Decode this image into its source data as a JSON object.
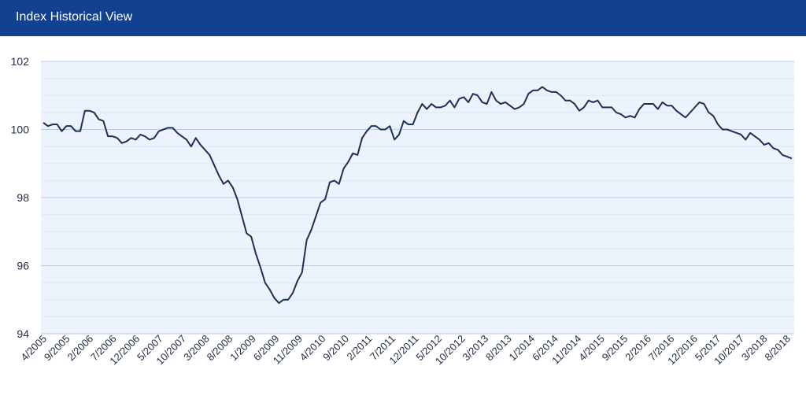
{
  "header": {
    "title": "Index Historical View"
  },
  "colors": {
    "header_bg": "#12418f",
    "plot_bg": "#edf3fd",
    "grid_major": "#b7cce8",
    "grid_minor": "#dde7f5",
    "line": "#1c2f55",
    "text": "#1f2b45"
  },
  "chart_data": {
    "type": "line",
    "title": "",
    "xlabel": "",
    "ylabel": "",
    "ylim": [
      94,
      102
    ],
    "yticks": [
      94,
      96,
      98,
      100,
      102
    ],
    "y_minor_step": 0.5,
    "grid": true,
    "x_tick_labels": [
      "4/2005",
      "9/2005",
      "2/2006",
      "7/2006",
      "12/2006",
      "5/2007",
      "10/2007",
      "3/2008",
      "8/2008",
      "1/2009",
      "6/2009",
      "11/2009",
      "4/2010",
      "9/2010",
      "2/2011",
      "7/2011",
      "12/2011",
      "5/2012",
      "10/2012",
      "3/2013",
      "8/2013",
      "1/2014",
      "6/2014",
      "11/2014",
      "4/2015",
      "9/2015",
      "2/2016",
      "7/2016",
      "12/2016",
      "5/2017",
      "10/2017",
      "3/2018",
      "8/2018"
    ],
    "x_start": "4/2005",
    "x_end": "10/2018",
    "series": [
      {
        "values": [
          100.2,
          100.1,
          100.15,
          100.15,
          99.95,
          100.1,
          100.1,
          99.95,
          99.95,
          100.55,
          100.55,
          100.5,
          100.3,
          100.25,
          99.8,
          99.8,
          99.75,
          99.6,
          99.65,
          99.75,
          99.7,
          99.85,
          99.8,
          99.7,
          99.75,
          99.95,
          100.0,
          100.05,
          100.05,
          99.9,
          99.8,
          99.7,
          99.5,
          99.75,
          99.55,
          99.4,
          99.25,
          98.95,
          98.65,
          98.4,
          98.5,
          98.3,
          97.95,
          97.45,
          96.95,
          96.85,
          96.35,
          95.95,
          95.5,
          95.3,
          95.05,
          94.9,
          95.0,
          95.0,
          95.2,
          95.55,
          95.8,
          96.75,
          97.05,
          97.45,
          97.85,
          97.95,
          98.45,
          98.5,
          98.4,
          98.85,
          99.05,
          99.3,
          99.25,
          99.75,
          99.95,
          100.1,
          100.1,
          100.0,
          100.0,
          100.1,
          99.7,
          99.85,
          100.25,
          100.15,
          100.15,
          100.5,
          100.75,
          100.6,
          100.75,
          100.65,
          100.65,
          100.7,
          100.85,
          100.65,
          100.9,
          100.95,
          100.8,
          101.05,
          101.0,
          100.8,
          100.75,
          101.1,
          100.85,
          100.75,
          100.8,
          100.7,
          100.6,
          100.65,
          100.75,
          101.05,
          101.15,
          101.15,
          101.25,
          101.15,
          101.1,
          101.1,
          101.0,
          100.85,
          100.85,
          100.75,
          100.55,
          100.65,
          100.85,
          100.8,
          100.85,
          100.65,
          100.65,
          100.65,
          100.5,
          100.45,
          100.35,
          100.4,
          100.35,
          100.6,
          100.75,
          100.75,
          100.75,
          100.6,
          100.8,
          100.7,
          100.7,
          100.55,
          100.45,
          100.35,
          100.5,
          100.65,
          100.8,
          100.75,
          100.5,
          100.4,
          100.15,
          100.0,
          100.0,
          99.95,
          99.9,
          99.85,
          99.7,
          99.9,
          99.8,
          99.7,
          99.55,
          99.6,
          99.45,
          99.4,
          99.25,
          99.2,
          99.15
        ]
      }
    ]
  }
}
